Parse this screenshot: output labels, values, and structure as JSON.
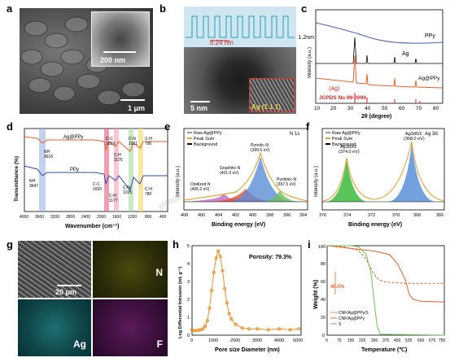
{
  "panels": {
    "a": {
      "label": "a",
      "scale_inset": "200 nm",
      "scale_main": "1 μm"
    },
    "b": {
      "label": "b",
      "profile_end": "1.2nm",
      "spacing": "0.24 nm",
      "scale": "5 nm",
      "plane": "Ag (1 1 1)"
    },
    "c": {
      "label": "c",
      "ylabel": "Intensity (a.u.)",
      "xlabel": "2θ (degree)",
      "xticks": [
        "10",
        "20",
        "30",
        "40",
        "50",
        "60",
        "70",
        "80"
      ],
      "series_labels": [
        "PPy",
        "Ag",
        "Ag@PPy"
      ],
      "ref_label": "(Ag)",
      "ref_card": "JCPDS No.99-0094"
    },
    "d": {
      "label": "d",
      "ylabel": "Transmittance (%)",
      "xlabel": "Wavenumber (cm⁻¹)",
      "xticks": [
        "4000",
        "3600",
        "3200",
        "2800",
        "2400",
        "2000",
        "1600",
        "1200",
        "800",
        "400"
      ],
      "series_labels": [
        "Ag@PPy",
        "PPy"
      ],
      "annot_top": [
        "NH",
        "3616",
        "C-C",
        "1659",
        "C-H",
        "1176",
        "C-N",
        "1021",
        "C-H",
        "790"
      ],
      "annot_bot": [
        "NH",
        "3647",
        "C-C",
        "1650",
        "C-H",
        "1177",
        "C-N",
        "1025",
        "C-H",
        "780"
      ]
    },
    "e": {
      "label": "e",
      "legend": [
        "Raw Ag@PPy",
        "Peak Sum",
        "Background"
      ],
      "tag": "N 1s",
      "ylabel": "Intensity (a.u.)",
      "xlabel": "Binding energy (eV)",
      "xticks": [
        "408",
        "406",
        "404",
        "402",
        "400",
        "398",
        "396",
        "394"
      ],
      "peaks": [
        "Pyrrolic-N",
        "(399.6 eV)",
        "Graphitic-N",
        "(401.0 eV)",
        "Oxidized N",
        "(405.2 eV)",
        "Pyridinic-N",
        "(397.5 eV)"
      ]
    },
    "f": {
      "label": "f",
      "legend": [
        "Raw Ag@PPy",
        "Peak Sum",
        "Background"
      ],
      "tag": "Ag 3d",
      "ylabel": "Intensity (a.u.)",
      "xlabel": "Binding energy (eV)",
      "xticks": [
        "376",
        "374",
        "372",
        "370",
        "368",
        "366"
      ],
      "peaks": [
        "Ag3d3/2",
        "(374.0 eV)",
        "Ag3d5/2",
        "(368.0 eV)"
      ]
    },
    "g": {
      "label": "g",
      "scale": "20 μm",
      "maps": [
        "N",
        "Ag",
        "F"
      ]
    },
    "h": {
      "label": "h",
      "ylabel": "Log Differential Intrusion (mL g⁻¹)",
      "xlabel": "Pore size Diameter (nm)",
      "annotation": "Porosity: 79.3%",
      "xticks": [
        "0",
        "1000",
        "2000",
        "3000",
        "4000",
        "5000"
      ],
      "yticks": [
        "0",
        "1",
        "2",
        "3",
        "4",
        "5"
      ]
    },
    "i": {
      "label": "i",
      "ylabel": "Weight (%)",
      "xlabel": "Temperature (℃)",
      "xticks": [
        "0",
        "75",
        "150",
        "225",
        "300",
        "375",
        "450",
        "525",
        "600",
        "675",
        "750"
      ],
      "yticks": [
        "0",
        "20",
        "40",
        "60",
        "80",
        "100"
      ],
      "annotation": "40.5%",
      "legend": [
        "CNF/Ag@PPy/S",
        "CNF/Ag@PPy",
        "S"
      ]
    }
  },
  "chart_data": [
    {
      "type": "line",
      "panel": "h",
      "xlabel": "Pore size Diameter (nm)",
      "ylabel": "Log Differential Intrusion (mL g⁻¹)",
      "xlim": [
        0,
        5000
      ],
      "ylim": [
        0,
        5
      ],
      "x": [
        0,
        100,
        200,
        300,
        400,
        500,
        600,
        700,
        800,
        900,
        1000,
        1100,
        1200,
        1300,
        1400,
        1500,
        1600,
        1700,
        1800,
        2000,
        2300,
        2600,
        3000,
        3500,
        4000,
        4500,
        4900
      ],
      "y": [
        0.3,
        0.25,
        0.25,
        0.28,
        0.3,
        0.35,
        0.5,
        0.8,
        1.5,
        2.5,
        3.5,
        4.3,
        4.7,
        4.4,
        3.6,
        2.6,
        1.8,
        1.2,
        0.9,
        0.6,
        0.4,
        0.35,
        0.35,
        0.3,
        0.35,
        0.3,
        0.35
      ]
    },
    {
      "type": "line",
      "panel": "i",
      "xlabel": "Temperature (℃)",
      "ylabel": "Weight (%)",
      "xlim": [
        0,
        750
      ],
      "ylim": [
        0,
        100
      ],
      "series": [
        {
          "name": "CNF/Ag@PPy/S",
          "x": [
            0,
            100,
            200,
            250,
            300,
            330,
            360,
            400,
            500,
            600,
            750
          ],
          "y": [
            100,
            99,
            95,
            85,
            68,
            62,
            60,
            59,
            58,
            58,
            58
          ]
        },
        {
          "name": "CNF/Ag@PPy",
          "x": [
            0,
            100,
            200,
            300,
            400,
            450,
            500,
            525,
            550,
            600,
            750
          ],
          "y": [
            100,
            98,
            96,
            94,
            90,
            80,
            62,
            46,
            40,
            38,
            37
          ]
        },
        {
          "name": "S",
          "x": [
            0,
            150,
            200,
            250,
            280,
            300,
            320,
            340,
            750
          ],
          "y": [
            100,
            100,
            99,
            90,
            70,
            40,
            10,
            1,
            0
          ]
        }
      ]
    }
  ]
}
